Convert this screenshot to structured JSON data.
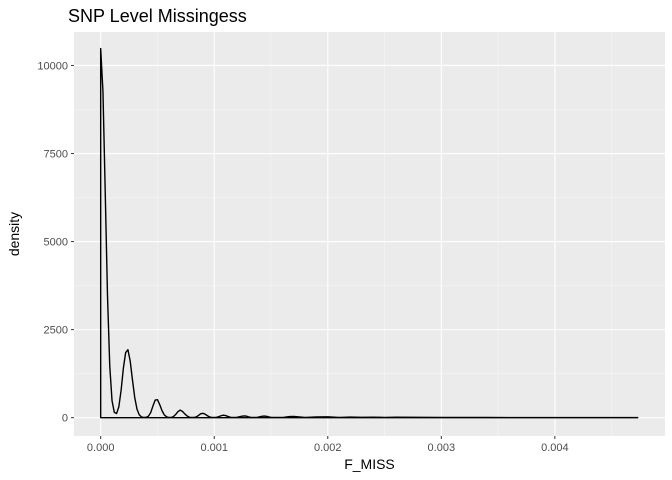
{
  "chart_data": {
    "type": "line",
    "title": "SNP Level Missingess",
    "xlabel": "F_MISS",
    "ylabel": "density",
    "xlim": [
      -0.000235,
      0.00497
    ],
    "ylim": [
      -520,
      10950
    ],
    "x_ticks": [
      0,
      0.001,
      0.002,
      0.003,
      0.004
    ],
    "x_tick_labels": [
      "0.000",
      "0.001",
      "0.002",
      "0.003",
      "0.004"
    ],
    "y_ticks": [
      0,
      2500,
      5000,
      7500,
      10000
    ],
    "y_tick_labels": [
      "0",
      "2500",
      "5000",
      "7500",
      "10000"
    ],
    "grid": true,
    "legend": "none",
    "series": [
      {
        "color": "#000000",
        "x": [
          0,
          2e-05,
          4e-05,
          6e-05,
          8e-05,
          0.0001,
          0.00012,
          0.00014,
          0.00016,
          0.00018,
          0.0002,
          0.00022,
          0.00024,
          0.00026,
          0.00028,
          0.0003,
          0.00032,
          0.00034,
          0.00036,
          0.00038,
          0.0004,
          0.00042,
          0.00044,
          0.00046,
          0.00048,
          0.0005,
          0.00052,
          0.00054,
          0.00056,
          0.00058,
          0.0006,
          0.00062,
          0.00064,
          0.00066,
          0.00068,
          0.0007,
          0.00072,
          0.00074,
          0.00076,
          0.00078,
          0.0008,
          0.00082,
          0.00084,
          0.00086,
          0.00088,
          0.0009,
          0.00092,
          0.00094,
          0.00096,
          0.00098,
          0.001,
          0.00102,
          0.00104,
          0.00106,
          0.00108,
          0.0011,
          0.00112,
          0.00114,
          0.00116,
          0.00118,
          0.0012,
          0.00122,
          0.00124,
          0.00126,
          0.00128,
          0.0013,
          0.00132,
          0.00134,
          0.00136,
          0.00138,
          0.0014,
          0.00142,
          0.00144,
          0.00146,
          0.00148,
          0.0015,
          0.0016,
          0.00166,
          0.0017,
          0.0018,
          0.0019,
          0.002,
          0.0021,
          0.0022,
          0.0023,
          0.0024,
          0.0025,
          0.0026,
          0.0028,
          0.003,
          0.0032,
          0.0034,
          0.0036,
          0.0038,
          0.004,
          0.0042,
          0.0044,
          0.0046,
          0.00473
        ],
        "y": [
          10480,
          9270,
          6410,
          3460,
          1460,
          480,
          150,
          120,
          310,
          780,
          1410,
          1850,
          1930,
          1610,
          1070,
          570,
          240,
          80,
          20,
          5,
          10,
          40,
          140,
          330,
          500,
          510,
          370,
          200,
          80,
          25,
          5,
          5,
          30,
          90,
          170,
          215,
          180,
          110,
          50,
          15,
          5,
          5,
          20,
          60,
          110,
          125,
          100,
          55,
          20,
          5,
          5,
          10,
          30,
          55,
          70,
          60,
          35,
          15,
          5,
          5,
          10,
          25,
          40,
          50,
          45,
          25,
          10,
          5,
          5,
          10,
          25,
          38,
          45,
          38,
          22,
          10,
          5,
          30,
          35,
          8,
          20,
          25,
          8,
          18,
          10,
          15,
          8,
          12,
          10,
          8,
          6,
          5,
          4,
          3,
          3,
          2,
          2,
          2,
          2
        ]
      }
    ]
  }
}
